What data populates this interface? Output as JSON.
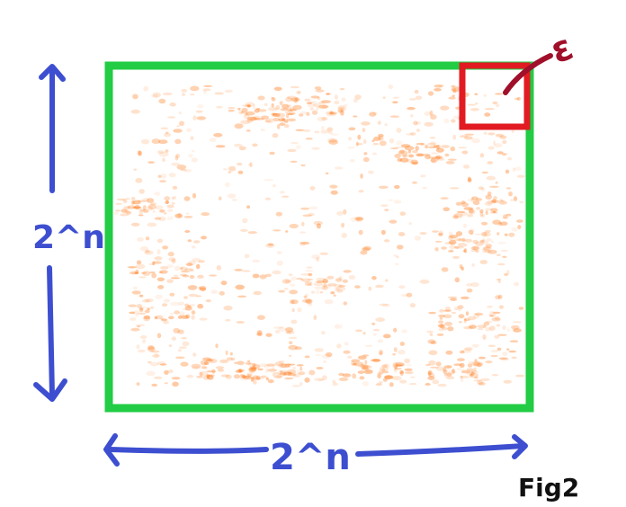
{
  "labels": {
    "height": "2^n",
    "width": "2^n",
    "epsilon": "ε",
    "figure": "Fig2"
  },
  "colors": {
    "outer_box": "#22cc44",
    "epsilon_box": "#e21b22",
    "arrows": "#3d4fd0",
    "epsilon_ink": "#a0102a",
    "figure_ink": "#111111",
    "speckle": "#ff7a1a"
  },
  "icons": {
    "vertical_arrow": "double-headed-arrow-vertical",
    "horizontal_arrow": "double-headed-arrow-horizontal"
  }
}
